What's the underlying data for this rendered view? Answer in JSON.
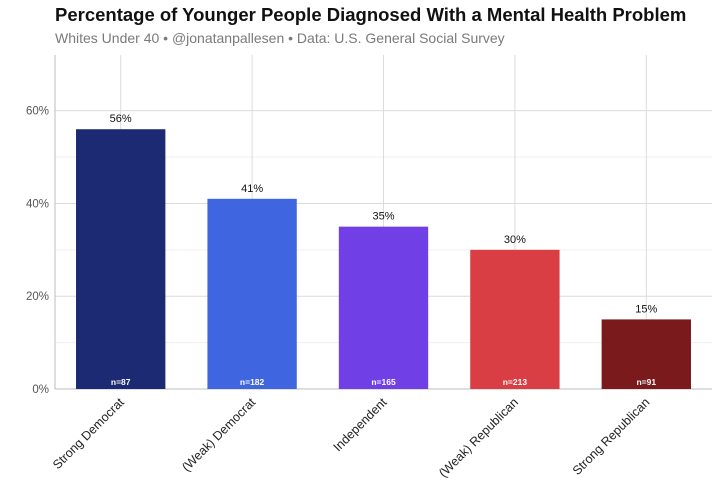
{
  "chart_data": {
    "type": "bar",
    "title": "Percentage of Younger People Diagnosed With a Mental Health Problem",
    "subtitle": "Whites Under 40 • @jonatanpallesen • Data: U.S. General Social Survey",
    "categories": [
      "Strong Democrat",
      "(Weak) Democrat",
      "Independent",
      "(Weak) Republican",
      "Strong Republican"
    ],
    "values": [
      56,
      41,
      35,
      30,
      15
    ],
    "value_labels": [
      "56%",
      "41%",
      "35%",
      "30%",
      "15%"
    ],
    "n_labels": [
      "n=87",
      "n=182",
      "n=165",
      "n=213",
      "n=91"
    ],
    "colors": [
      "#1b2a72",
      "#3f66e0",
      "#7040e6",
      "#d83e43",
      "#7a1a1c"
    ],
    "yticks": [
      0,
      20,
      40,
      60
    ],
    "ytick_labels": [
      "0%",
      "20%",
      "40%",
      "60%"
    ],
    "ylim": [
      0,
      72
    ],
    "grid": true,
    "xlabel": "",
    "ylabel": ""
  }
}
